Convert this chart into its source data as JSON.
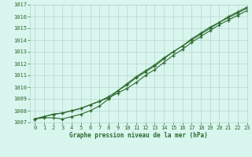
{
  "x": [
    0,
    1,
    2,
    3,
    4,
    5,
    6,
    7,
    8,
    9,
    10,
    11,
    12,
    13,
    14,
    15,
    16,
    17,
    18,
    19,
    20,
    21,
    22,
    23
  ],
  "line1": [
    1007.3,
    1007.5,
    1007.7,
    1007.8,
    1008.0,
    1008.2,
    1008.5,
    1008.8,
    1009.1,
    1009.5,
    1009.9,
    1010.4,
    1011.0,
    1011.5,
    1012.1,
    1012.7,
    1013.2,
    1013.8,
    1014.3,
    1014.8,
    1015.3,
    1015.7,
    1016.1,
    1016.5
  ],
  "line2": [
    1007.3,
    1007.5,
    1007.7,
    1007.8,
    1008.0,
    1008.2,
    1008.5,
    1008.8,
    1009.2,
    1009.7,
    1010.2,
    1010.8,
    1011.3,
    1011.8,
    1012.4,
    1013.0,
    1013.5,
    1014.0,
    1014.5,
    1015.0,
    1015.5,
    1015.9,
    1016.3,
    1016.7
  ],
  "line3": [
    1007.3,
    1007.4,
    1007.4,
    1007.3,
    1007.5,
    1007.7,
    1008.0,
    1008.4,
    1009.0,
    1009.7,
    1010.3,
    1010.9,
    1011.4,
    1011.9,
    1012.5,
    1013.0,
    1013.5,
    1014.1,
    1014.6,
    1015.1,
    1015.5,
    1016.0,
    1016.4,
    1016.8
  ],
  "line_color": "#2d6a2d",
  "bg_color": "#d8f5ee",
  "grid_color": "#b8d4cc",
  "xlabel": "Graphe pression niveau de la mer (hPa)",
  "ylim": [
    1007,
    1017
  ],
  "xlim": [
    -0.5,
    23
  ],
  "yticks": [
    1007,
    1008,
    1009,
    1010,
    1011,
    1012,
    1013,
    1014,
    1015,
    1016,
    1017
  ],
  "xticks": [
    0,
    1,
    2,
    3,
    4,
    5,
    6,
    7,
    8,
    9,
    10,
    11,
    12,
    13,
    14,
    15,
    16,
    17,
    18,
    19,
    20,
    21,
    22,
    23
  ],
  "xlabel_fontsize": 5.5,
  "tick_fontsize": 5,
  "marker_size": 3.5,
  "linewidth": 0.8
}
